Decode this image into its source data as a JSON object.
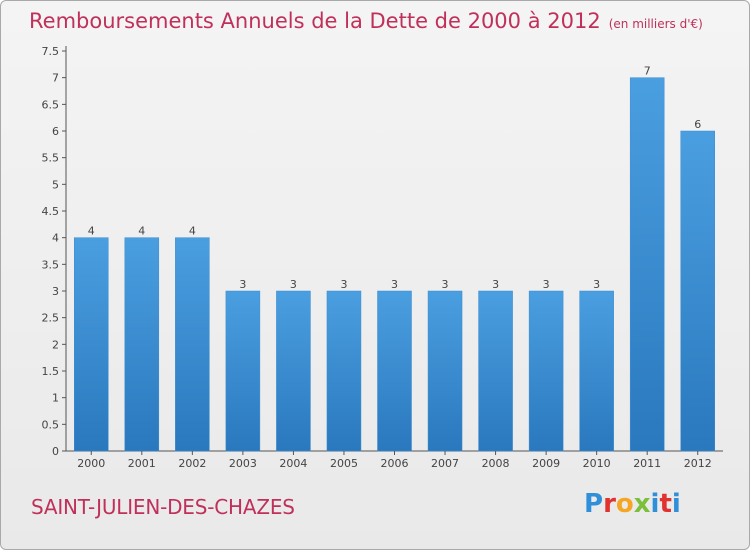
{
  "header": {
    "title": "Remboursements Annuels de la Dette de 2000 à 2012",
    "unit": "(en milliers d'€)"
  },
  "footer": {
    "commune": "SAINT-JULIEN-DES-CHAZES",
    "logo": [
      "P",
      "r",
      "o",
      "x",
      "i",
      "t",
      "i"
    ]
  },
  "colors": {
    "bar": "#4a9fe0",
    "bar_dark": "#2a78be",
    "title": "#c0305a"
  },
  "chart_data": {
    "type": "bar",
    "title": "Remboursements Annuels de la Dette de 2000 à 2012",
    "categories": [
      "2000",
      "2001",
      "2002",
      "2003",
      "2004",
      "2005",
      "2006",
      "2007",
      "2008",
      "2009",
      "2010",
      "2011",
      "2012"
    ],
    "values": [
      4,
      4,
      4,
      3,
      3,
      3,
      3,
      3,
      3,
      3,
      3,
      7,
      6
    ],
    "data_labels": [
      "4",
      "4",
      "4",
      "3",
      "3",
      "3",
      "3",
      "3",
      "3",
      "3",
      "3",
      "7",
      "6"
    ],
    "yticks": [
      "0",
      "0.5",
      "1",
      "1.5",
      "2",
      "2.5",
      "3",
      "3.5",
      "4",
      "4.5",
      "5",
      "5.5",
      "6",
      "6.5",
      "7",
      "7.5"
    ],
    "ylim": [
      0,
      7.5
    ],
    "xlabel": "",
    "ylabel": "",
    "grid": false
  }
}
